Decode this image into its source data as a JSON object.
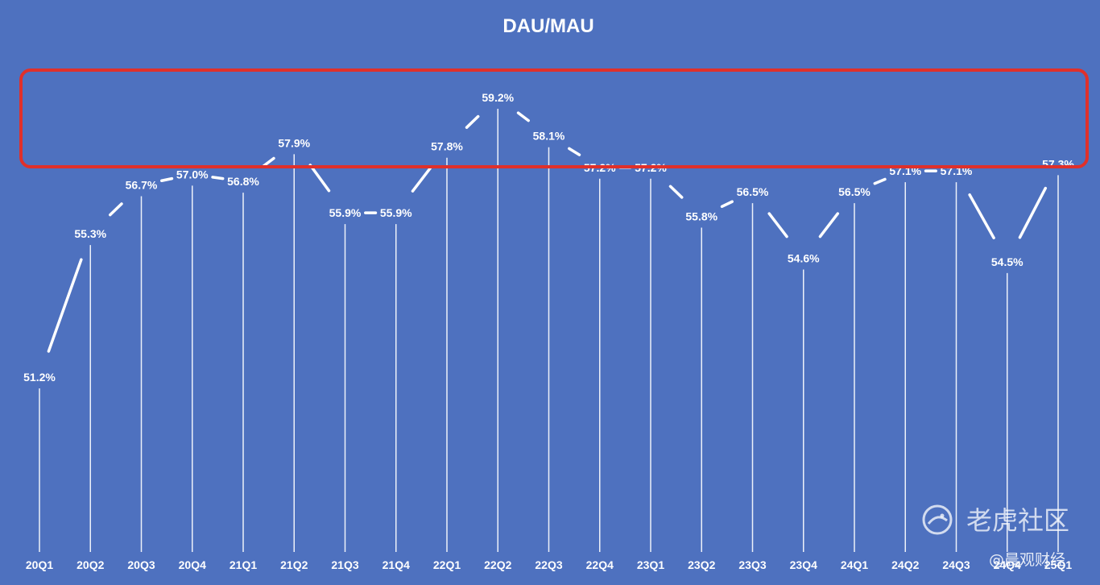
{
  "chart_data": {
    "type": "line",
    "title": "DAU/MAU",
    "categories": [
      "20Q1",
      "20Q2",
      "20Q3",
      "20Q4",
      "21Q1",
      "21Q2",
      "21Q3",
      "21Q4",
      "22Q1",
      "22Q2",
      "22Q3",
      "22Q4",
      "23Q1",
      "23Q2",
      "23Q3",
      "23Q4",
      "24Q1",
      "24Q2",
      "24Q3",
      "24Q4",
      "25Q1"
    ],
    "values": [
      51.2,
      55.3,
      56.7,
      57.0,
      56.8,
      57.9,
      55.9,
      55.9,
      57.8,
      59.2,
      58.1,
      57.2,
      57.2,
      55.8,
      56.5,
      54.6,
      56.5,
      57.1,
      57.1,
      54.5,
      57.3
    ],
    "value_labels": [
      "51.2%",
      "55.3%",
      "56.7%",
      "57.0%",
      "56.8%",
      "57.9%",
      "55.9%",
      "55.9%",
      "57.8%",
      "59.2%",
      "58.1%",
      "57.2%",
      "57.2%",
      "55.8%",
      "56.5%",
      "54.6%",
      "56.5%",
      "57.1%",
      "57.1%",
      "54.5%",
      "57.3%"
    ],
    "xlabel": "",
    "ylabel": "",
    "grid": false,
    "legend": "none",
    "highlight_box": {
      "color": "#e0302a",
      "covers_range": [
        57.0,
        59.2
      ]
    },
    "colors": {
      "background": "#4e71bf",
      "line": "#ffffff",
      "highlight": "#e0302a"
    }
  },
  "watermarks": {
    "community": "老虎社区",
    "community_icon": "tiger-logo-icon",
    "source": "@晨观财经"
  }
}
